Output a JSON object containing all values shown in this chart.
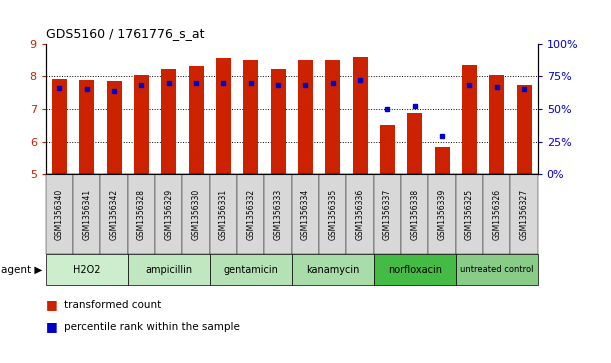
{
  "title": "GDS5160 / 1761776_s_at",
  "samples": [
    "GSM1356340",
    "GSM1356341",
    "GSM1356342",
    "GSM1356328",
    "GSM1356329",
    "GSM1356330",
    "GSM1356331",
    "GSM1356332",
    "GSM1356333",
    "GSM1356334",
    "GSM1356335",
    "GSM1356336",
    "GSM1356337",
    "GSM1356338",
    "GSM1356339",
    "GSM1356325",
    "GSM1356326",
    "GSM1356327"
  ],
  "bar_heights": [
    7.93,
    7.88,
    7.84,
    8.05,
    8.22,
    8.3,
    8.56,
    8.5,
    8.22,
    8.5,
    8.5,
    8.58,
    6.52,
    6.86,
    5.82,
    8.34,
    8.03,
    7.73
  ],
  "blue_dot_percentile": [
    66,
    65,
    64,
    68,
    70,
    70,
    70,
    70,
    68,
    68,
    70,
    72,
    50,
    52,
    29,
    68,
    67,
    65
  ],
  "agents": [
    {
      "label": "H2O2",
      "start": 0,
      "end": 3,
      "color": "#cceecc"
    },
    {
      "label": "ampicillin",
      "start": 3,
      "end": 6,
      "color": "#c0e8c0"
    },
    {
      "label": "gentamicin",
      "start": 6,
      "end": 9,
      "color": "#b4e2b4"
    },
    {
      "label": "kanamycin",
      "start": 9,
      "end": 12,
      "color": "#a8dca8"
    },
    {
      "label": "norfloxacin",
      "start": 12,
      "end": 15,
      "color": "#44bb44"
    },
    {
      "label": "untreated control",
      "start": 15,
      "end": 18,
      "color": "#88cc88"
    }
  ],
  "ylim_left": [
    5,
    9
  ],
  "ylim_right": [
    0,
    100
  ],
  "yticks_left": [
    5,
    6,
    7,
    8,
    9
  ],
  "yticks_right": [
    0,
    25,
    50,
    75,
    100
  ],
  "ytick_labels_right": [
    "0%",
    "25%",
    "50%",
    "75%",
    "100%"
  ],
  "bar_color": "#cc2200",
  "dot_color": "#0000cc",
  "bar_width": 0.55,
  "bg_color": "#ffffff",
  "left_tick_color": "#cc2200",
  "right_tick_color": "#0000cc",
  "sample_box_color": "#d8d8d8",
  "gridline_yticks": [
    6,
    7,
    8
  ]
}
